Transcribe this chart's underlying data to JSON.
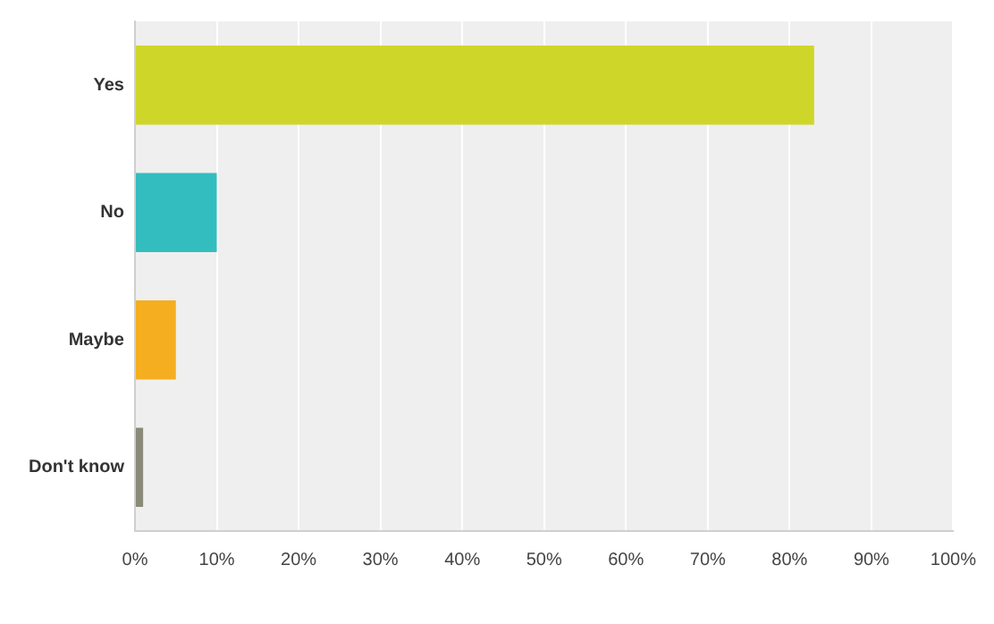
{
  "chart_data": {
    "type": "bar",
    "orientation": "horizontal",
    "categories": [
      "Yes",
      "No",
      "Maybe",
      "Don't know"
    ],
    "values": [
      83,
      10,
      5,
      1
    ],
    "colors": [
      "#cfd62a",
      "#33bdbf",
      "#f5ae1f",
      "#8a8a78"
    ],
    "xlim": [
      0,
      100
    ],
    "xticks": [
      {
        "value": 0,
        "label": "0%"
      },
      {
        "value": 10,
        "label": "10%"
      },
      {
        "value": 20,
        "label": "20%"
      },
      {
        "value": 30,
        "label": "30%"
      },
      {
        "value": 40,
        "label": "40%"
      },
      {
        "value": 50,
        "label": "50%"
      },
      {
        "value": 60,
        "label": "60%"
      },
      {
        "value": 70,
        "label": "70%"
      },
      {
        "value": 80,
        "label": "80%"
      },
      {
        "value": 90,
        "label": "90%"
      },
      {
        "value": 100,
        "label": "100%"
      }
    ],
    "grid": "x",
    "legend": false
  }
}
